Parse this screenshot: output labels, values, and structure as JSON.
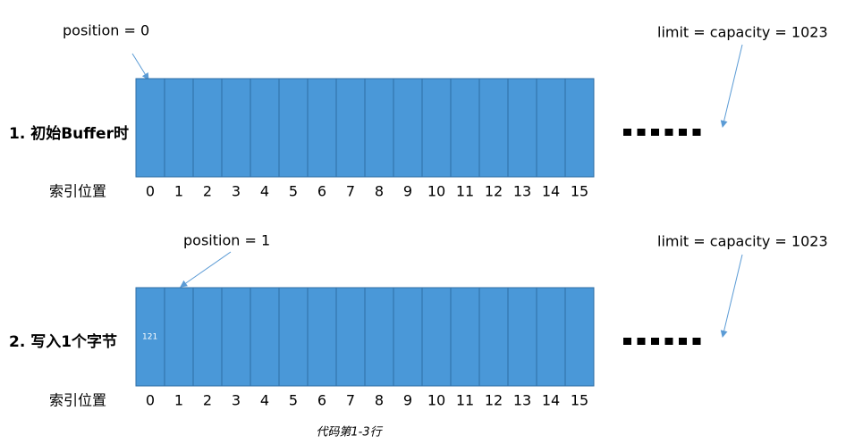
{
  "rows": [
    {
      "label": "1. 初始Buffer时",
      "position": "position = 0",
      "limit": "limit = capacity = 1023",
      "index_label": "索引位置",
      "indices": [
        0,
        1,
        2,
        3,
        4,
        5,
        6,
        7,
        8,
        9,
        10,
        11,
        12,
        13,
        14,
        15
      ],
      "cells": []
    },
    {
      "label": "2. 写入1个字节",
      "position": "position = 1",
      "limit": "limit = capacity = 1023",
      "index_label": "索引位置",
      "indices": [
        0,
        1,
        2,
        3,
        4,
        5,
        6,
        7,
        8,
        9,
        10,
        11,
        12,
        13,
        14,
        15
      ],
      "cells": [
        "121"
      ]
    }
  ],
  "caption": "代码第1-3行"
}
